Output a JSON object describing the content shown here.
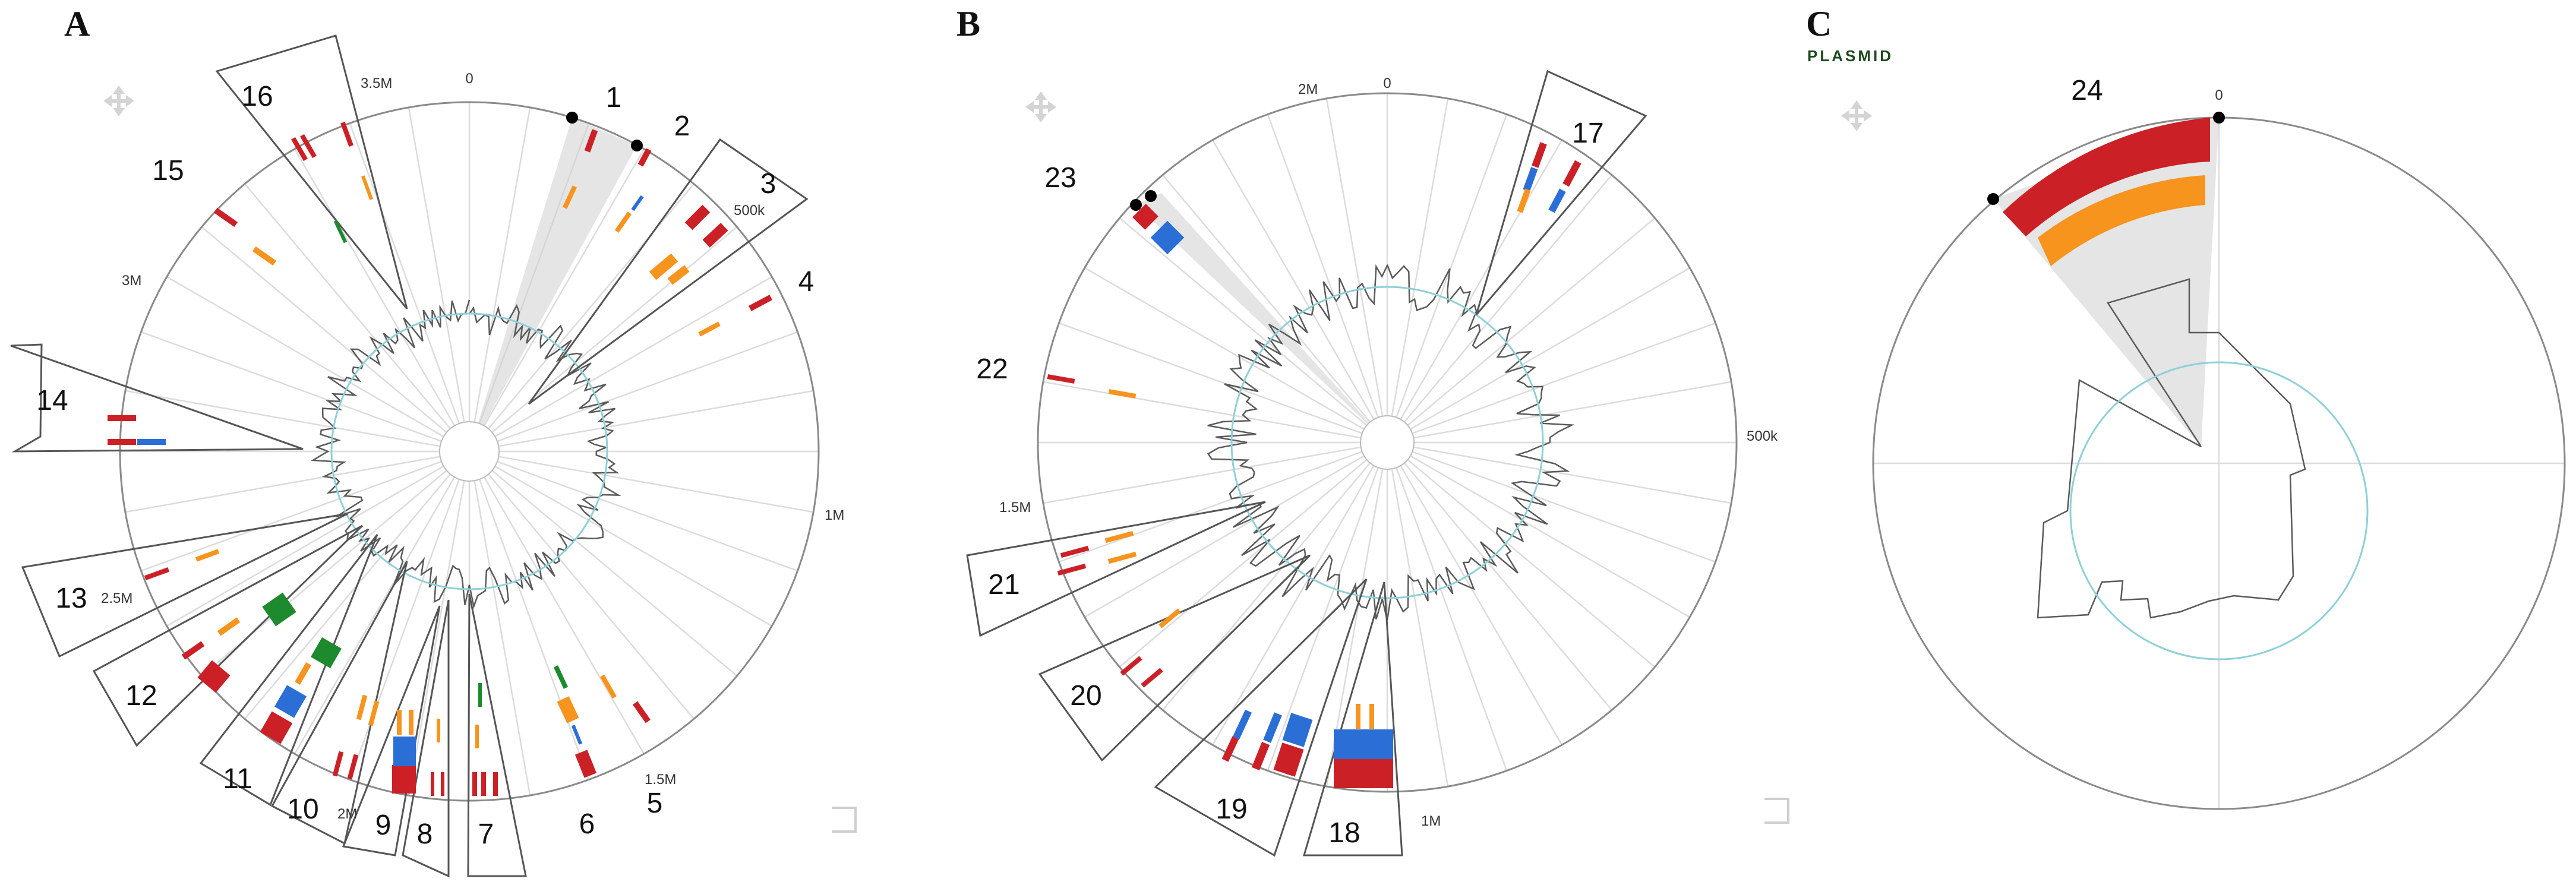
{
  "panels": [
    {
      "letter": "A",
      "ticks": [
        "0",
        "500k",
        "1M",
        "1.5M",
        "2M",
        "2.5M",
        "3M",
        "3.5M"
      ],
      "regions": [
        "1",
        "2",
        "3",
        "4",
        "5",
        "6",
        "7",
        "8",
        "9",
        "10",
        "11",
        "12",
        "13",
        "14",
        "15",
        "16"
      ]
    },
    {
      "letter": "B",
      "ticks": [
        "0",
        "500k",
        "1M",
        "1.5M",
        "2M"
      ],
      "regions": [
        "17",
        "18",
        "19",
        "20",
        "21",
        "22",
        "23"
      ]
    },
    {
      "letter": "C",
      "subtitle": "PLASMID",
      "ticks": [
        "0"
      ],
      "regions": [
        "24"
      ]
    }
  ],
  "icons": {
    "pan": "move-arrows-icon",
    "resize": "resize-corner-icon"
  },
  "colors": {
    "red": "#cc2027",
    "orange": "#f7941d",
    "blue": "#2b6fd6",
    "green": "#1d8a2e",
    "gc_mean": "#8fd0d8"
  }
}
